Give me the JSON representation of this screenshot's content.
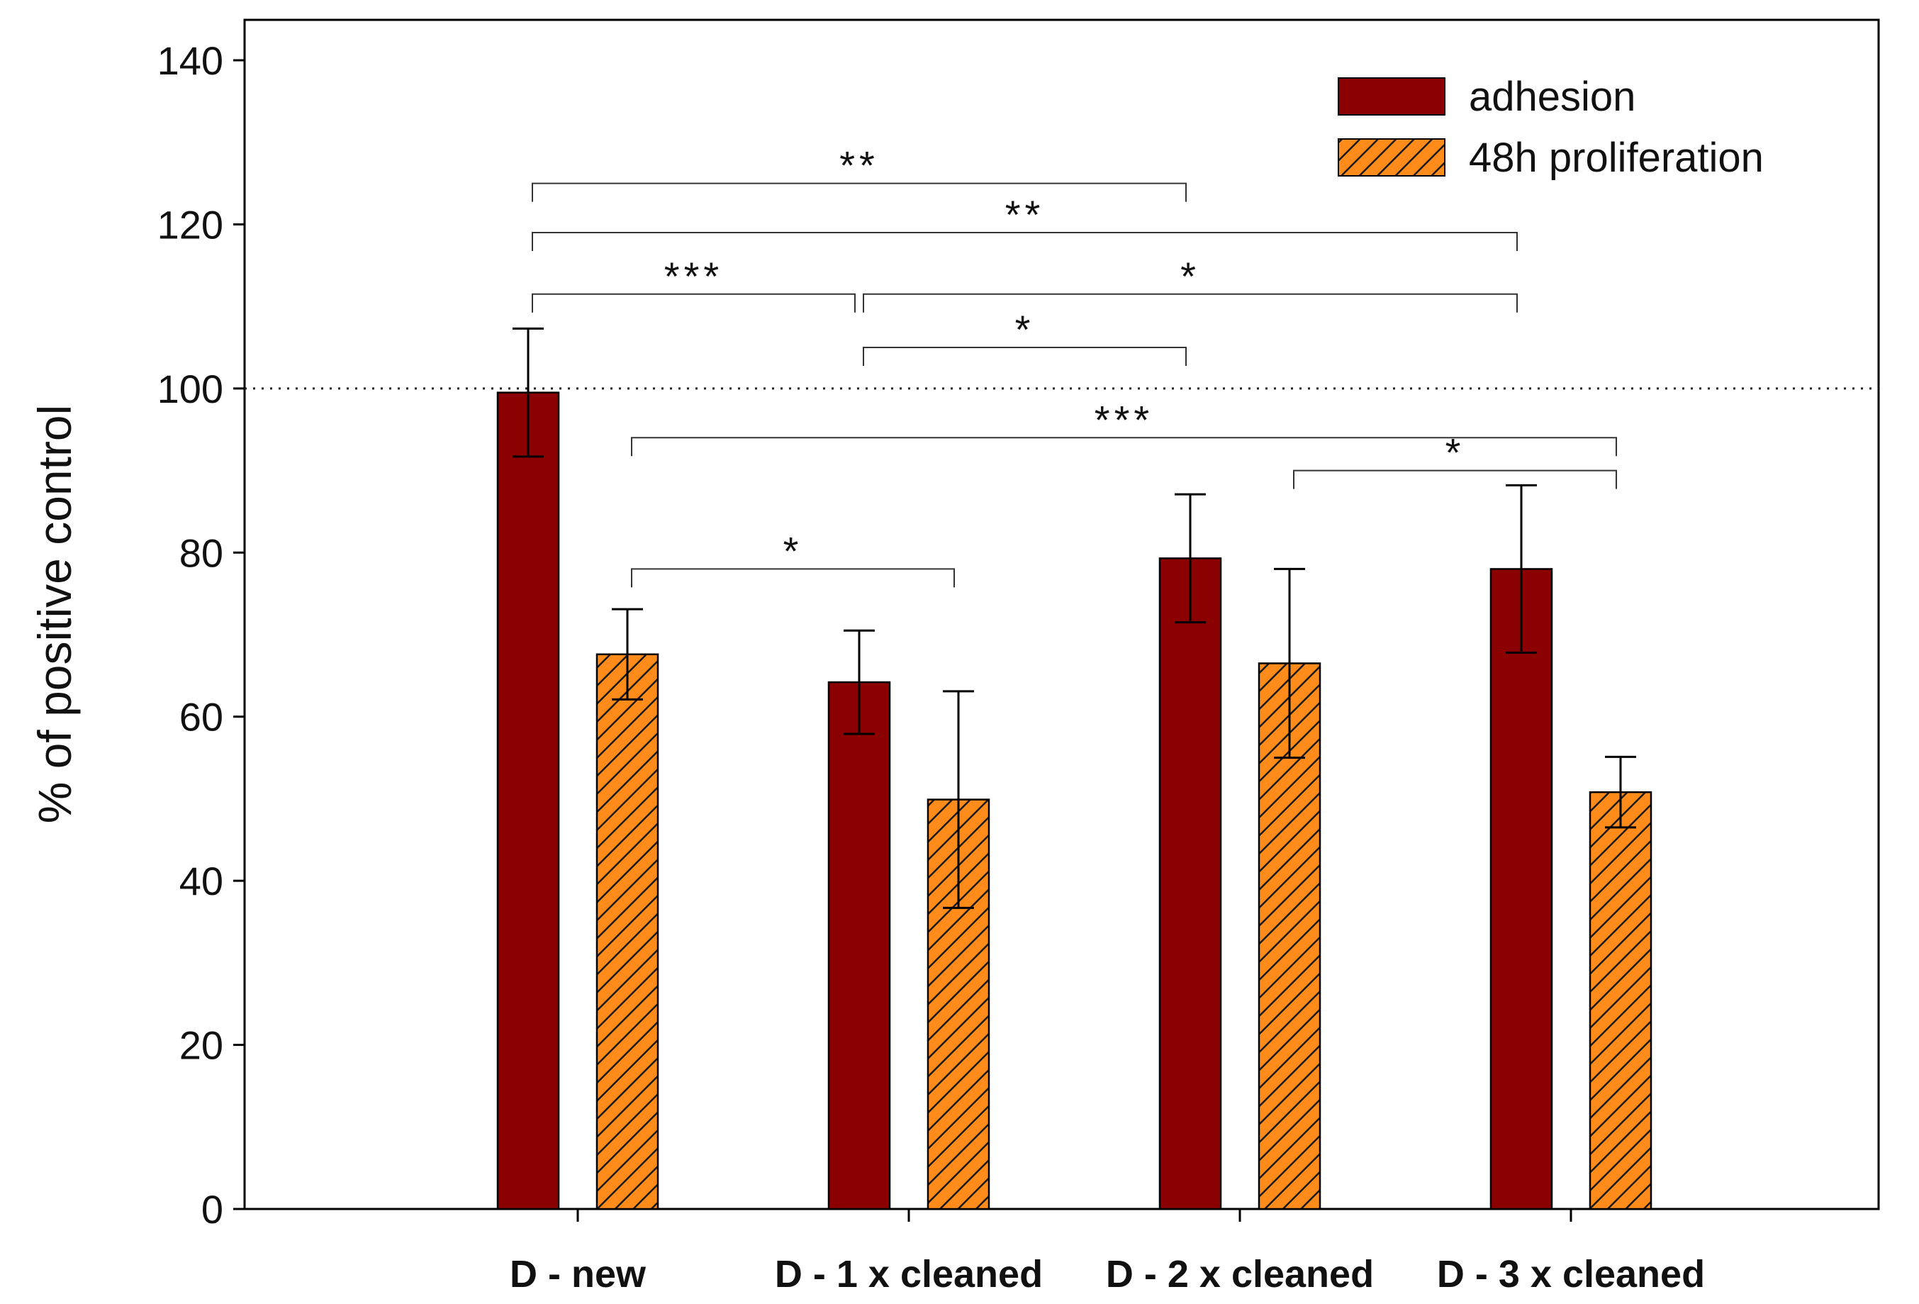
{
  "chart_data": {
    "type": "bar",
    "title": "",
    "xlabel": "",
    "ylabel": "% of positive control",
    "ylim": [
      0,
      140
    ],
    "yticks": [
      0,
      20,
      40,
      60,
      80,
      100,
      120,
      140
    ],
    "grid": false,
    "reference_line": {
      "y": 100,
      "style": "dotted"
    },
    "categories": [
      "D - new",
      "D - 1 x cleaned",
      "D - 2 x cleaned",
      "D - 3 x cleaned"
    ],
    "series": [
      {
        "name": "adhesion",
        "color": "#8b0000",
        "pattern": "solid",
        "values": [
          99.5,
          64.2,
          79.3,
          78.0
        ],
        "errors": [
          7.8,
          6.3,
          7.8,
          10.2
        ]
      },
      {
        "name": "48h proliferation",
        "color": "#ff8c1a",
        "pattern": "hatched",
        "values": [
          67.6,
          49.9,
          66.5,
          50.8
        ],
        "errors": [
          5.5,
          13.2,
          11.5,
          4.3
        ]
      }
    ],
    "legend": {
      "position": "top-right"
    },
    "significance": [
      {
        "label": "**",
        "from": [
          0,
          0
        ],
        "to": [
          2,
          0
        ],
        "y": 125
      },
      {
        "label": "**",
        "from": [
          0,
          0
        ],
        "to": [
          3,
          0
        ],
        "y": 119
      },
      {
        "label": "***",
        "from": [
          0,
          0
        ],
        "to": [
          1,
          0
        ],
        "y": 111.5
      },
      {
        "label": "*",
        "from": [
          1,
          0
        ],
        "to": [
          3,
          0
        ],
        "y": 111.5
      },
      {
        "label": "*",
        "from": [
          1,
          0
        ],
        "to": [
          2,
          0
        ],
        "y": 105
      },
      {
        "label": "***",
        "from": [
          0,
          1
        ],
        "to": [
          3,
          1
        ],
        "y": 94
      },
      {
        "label": "*",
        "from": [
          2,
          1
        ],
        "to": [
          3,
          1
        ],
        "y": 90
      },
      {
        "label": "*",
        "from": [
          0,
          1
        ],
        "to": [
          1,
          1
        ],
        "y": 78
      }
    ]
  }
}
